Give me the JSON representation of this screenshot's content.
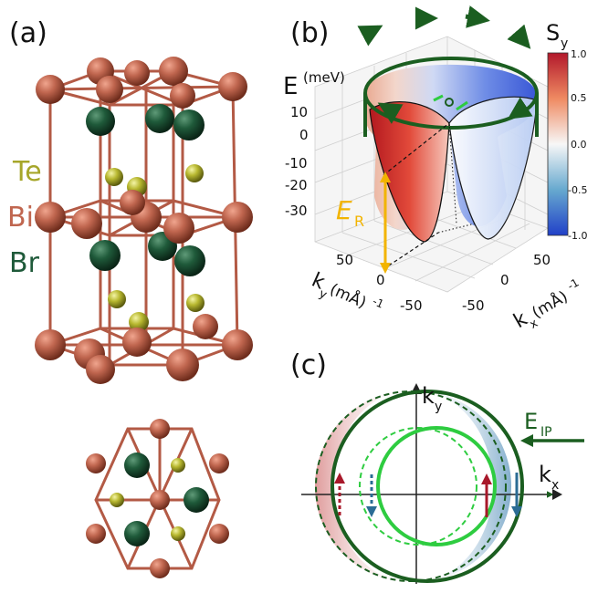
{
  "panels": {
    "a": {
      "label": "(a)"
    },
    "b": {
      "label": "(b)"
    },
    "c": {
      "label": "(c)"
    }
  },
  "elements": {
    "te": {
      "label": "Te",
      "color": "#a6a62a"
    },
    "bi": {
      "label": "Bi",
      "color": "#c0664f"
    },
    "br": {
      "label": "Br",
      "color": "#1f5a3a"
    }
  },
  "panel_b": {
    "axis_e_label": "E",
    "axis_e_unit": "(meV)",
    "e_ticks": [
      "10",
      "0",
      "-10",
      "-20",
      "-30"
    ],
    "ky_label": "k",
    "ky_sub": "y",
    "ky_unit": "(mÅ)",
    "ky_exp": "-1",
    "ky_ticks": [
      "50",
      "0",
      "-50"
    ],
    "kx_label": "k",
    "kx_sub": "x",
    "kx_unit": "(mÅ)",
    "kx_exp": "-1",
    "kx_ticks": [
      "50",
      "0",
      "-50"
    ],
    "er_label": "E",
    "er_sub": "R",
    "colorbar_title": "S",
    "colorbar_sub": "y",
    "colorbar_ticks": [
      "1.0",
      "0.5",
      "0.0",
      "-0.5",
      "-1.0"
    ]
  },
  "panel_c": {
    "ky_label": "k",
    "ky_sub": "y",
    "kx_label": "k",
    "kx_sub": "x",
    "eip_label": "E",
    "eip_sub": "IP"
  }
}
